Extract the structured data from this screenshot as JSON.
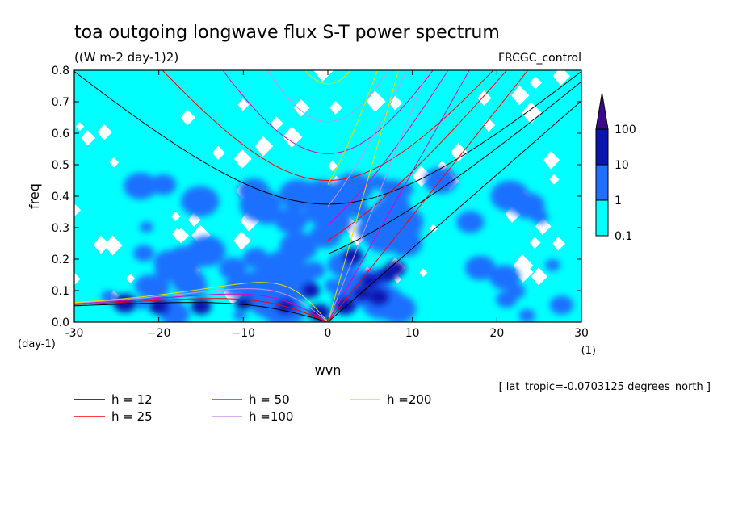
{
  "chart_data": {
    "type": "heatmap",
    "title": "toa outgoing longwave flux S-T power spectrum",
    "subtitle": "((W m-2 day-1)2)",
    "run_label": "FRCGC_control",
    "xlabel": "wvn",
    "x_unit": "(1)",
    "ylabel": "freq",
    "y_unit": "(day-1)",
    "xlim": [
      -30,
      30
    ],
    "ylim": [
      0,
      0.8
    ],
    "x_ticks": [
      -30,
      -20,
      -10,
      0,
      10,
      20,
      30
    ],
    "y_ticks": [
      0.0,
      0.1,
      0.2,
      0.3,
      0.4,
      0.5,
      0.6,
      0.7,
      0.8
    ],
    "x_tick_labels": [
      "-30",
      "−20",
      "−10",
      "0",
      "10",
      "20",
      "30"
    ],
    "y_tick_labels": [
      "0.0",
      "0.1",
      "0.2",
      "0.3",
      "0.4",
      "0.5",
      "0.6",
      "0.7",
      "0.8"
    ],
    "colorbar": {
      "levels": [
        "0.1",
        "1",
        "10",
        "100"
      ],
      "colors": [
        "#00ffff",
        "#1f6fff",
        "#0a14b0",
        "#3a0a8c"
      ]
    },
    "footnote": "[ lat_tropic=-0.0703125 degrees_north ]",
    "dispersion_curves": [
      {
        "name": "h = 12",
        "h": 12,
        "color": "#000000"
      },
      {
        "name": "h = 25",
        "h": 25,
        "color": "#ff0000"
      },
      {
        "name": "h = 50",
        "h": 50,
        "color": "#e000c0"
      },
      {
        "name": "h =100",
        "h": 100,
        "color": "#d090e8"
      },
      {
        "name": "h =200",
        "h": 200,
        "color": "#e8e000"
      }
    ]
  }
}
